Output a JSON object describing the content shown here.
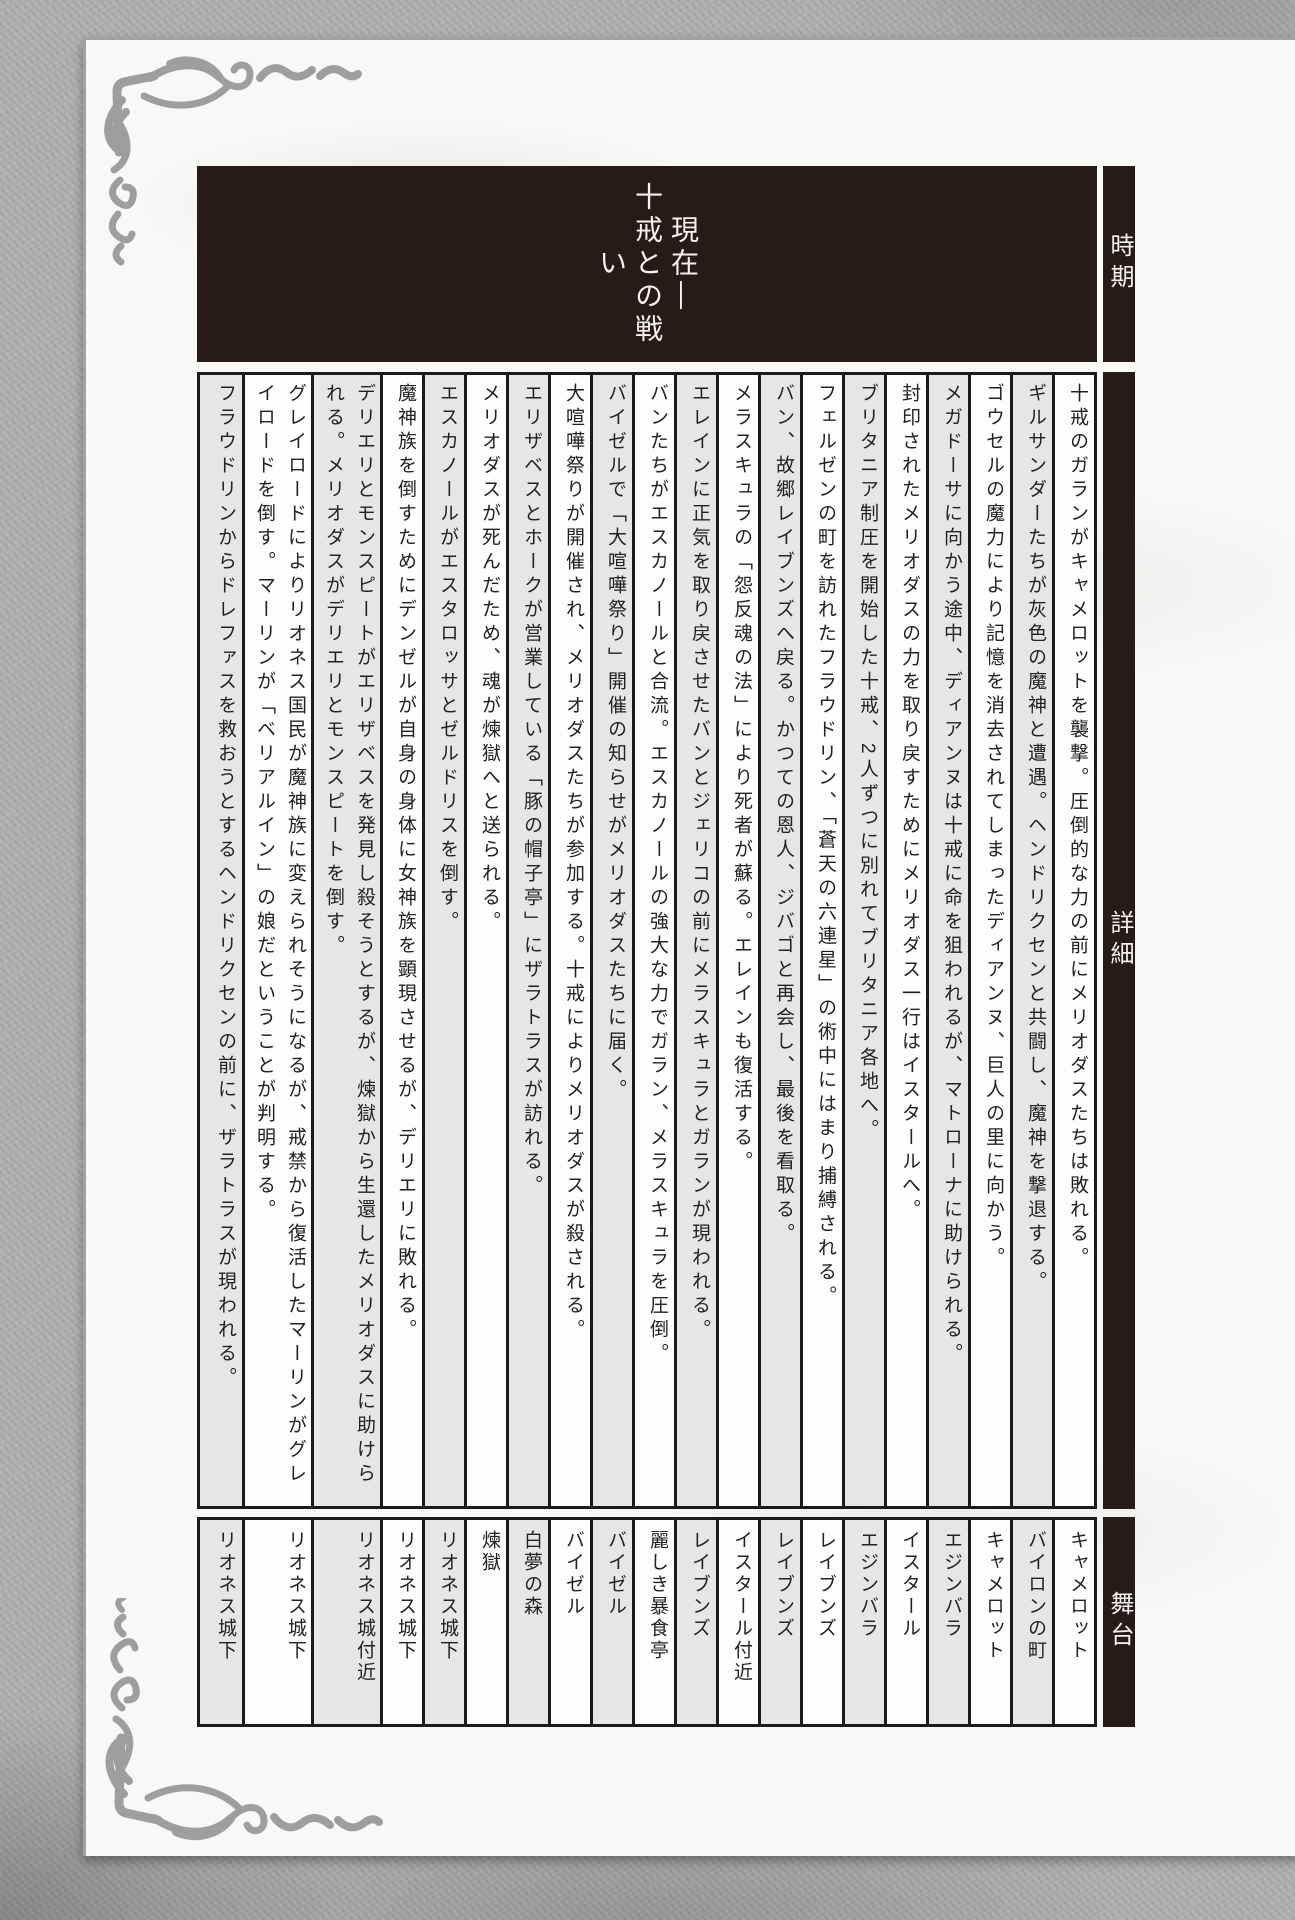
{
  "table": {
    "header_labels": {
      "period": "時期",
      "details": "詳細",
      "stage": "舞台"
    },
    "period_value": {
      "full": "現在―十戒との戦い",
      "line1": "現在―",
      "line2": "十戒との戦い"
    },
    "events": [
      {
        "details": "十戒のガランがキャメロットを襲撃。圧倒的な力の前にメリオダスたちは敗れる。",
        "stage": "キャメロット"
      },
      {
        "details": "ギルサンダーたちが灰色の魔神と遭遇。ヘンドリクセンと共闘し、魔神を撃退する。",
        "stage": "バイロンの町"
      },
      {
        "details": "ゴウセルの魔力により記憶を消去されてしまったディアンヌ、巨人の里に向かう。",
        "stage": "キャメロット"
      },
      {
        "details": "メガドーサに向かう途中、ディアンヌは十戒に命を狙われるが、マトローナに助けられる。",
        "stage": "エジンバラ"
      },
      {
        "details": "封印されたメリオダスの力を取り戻すためにメリオダス一行はイスタールへ。",
        "stage": "イスタール"
      },
      {
        "details": "ブリタニア制圧を開始した十戒、2人ずつに別れてブリタニア各地へ。",
        "stage": "エジンバラ"
      },
      {
        "details": "フェルゼンの町を訪れたフラウドリン、「蒼天の六連星」の術中にはまり捕縛される。",
        "stage": "レイブンズ"
      },
      {
        "details": "バン、故郷レイブンズへ戻る。かつての恩人、ジバゴと再会し、最後を看取る。",
        "stage": "レイブンズ"
      },
      {
        "details": "メラスキュラの「怨反魂の法」により死者が蘇る。エレインも復活する。",
        "stage": "イスタール付近"
      },
      {
        "details": "エレインに正気を取り戻させたバンとジェリコの前にメラスキュラとガランが現われる。",
        "stage": "レイブンズ"
      },
      {
        "details": "バンたちがエスカノールと合流。エスカノールの強大な力でガラン、メラスキュラを圧倒。",
        "stage": "麗しき暴食亭"
      },
      {
        "details": "バイゼルで「大喧嘩祭り」開催の知らせがメリオダスたちに届く。",
        "stage": "バイゼル"
      },
      {
        "details": "大喧嘩祭りが開催され、メリオダスたちが参加する。十戒によりメリオダスが殺される。",
        "stage": "バイゼル"
      },
      {
        "details": "エリザベスとホークが営業している「豚の帽子亭」にザラトラスが訪れる。",
        "stage": "白夢の森"
      },
      {
        "details": "メリオダスが死んだため、魂が煉獄へと送られる。",
        "stage": "煉獄"
      },
      {
        "details": "エスカノールがエスタロッサとゼルドリスを倒す。",
        "stage": "リオネス城下"
      },
      {
        "details": "魔神族を倒すためにデンゼルが自身の身体に女神族を顕現させるが、デリエリに敗れる。",
        "stage": "リオネス城下"
      },
      {
        "details": "デリエリとモンスピートがエリザベスを発見し殺そうとするが、煉獄から生還したメリオダスに助けられる。メリオダスがデリエリとモンスピートを倒す。",
        "stage": "リオネス城付近"
      },
      {
        "details": "グレイロードによりリオネス国民が魔神族に変えられそうになるが、戒禁から復活したマーリンがグレイロードを倒す。マーリンが「ベリアルイン」の娘だということが判明する。",
        "stage": "リオネス城下"
      },
      {
        "details": "フラウドリンからドレファスを救おうとするヘンドリクセンの前に、ザラトラスが現われる。",
        "stage": "リオネス城下"
      }
    ]
  },
  "icons": {
    "top_left_ornament": "calligraphic-corner-flourish",
    "bottom_left_ornament": "calligraphic-corner-flourish"
  },
  "colors": {
    "band_black": "#261b17",
    "cell_gray": "#e6e6e5",
    "cell_white": "#fdfdfc",
    "border": "#1b1b1b",
    "paper": "#f8f8f6",
    "stone_background": "#b2b1af",
    "ornament_gray": "#9e9e9e",
    "body_text": "#222222",
    "header_text": "#f5f2ef"
  }
}
